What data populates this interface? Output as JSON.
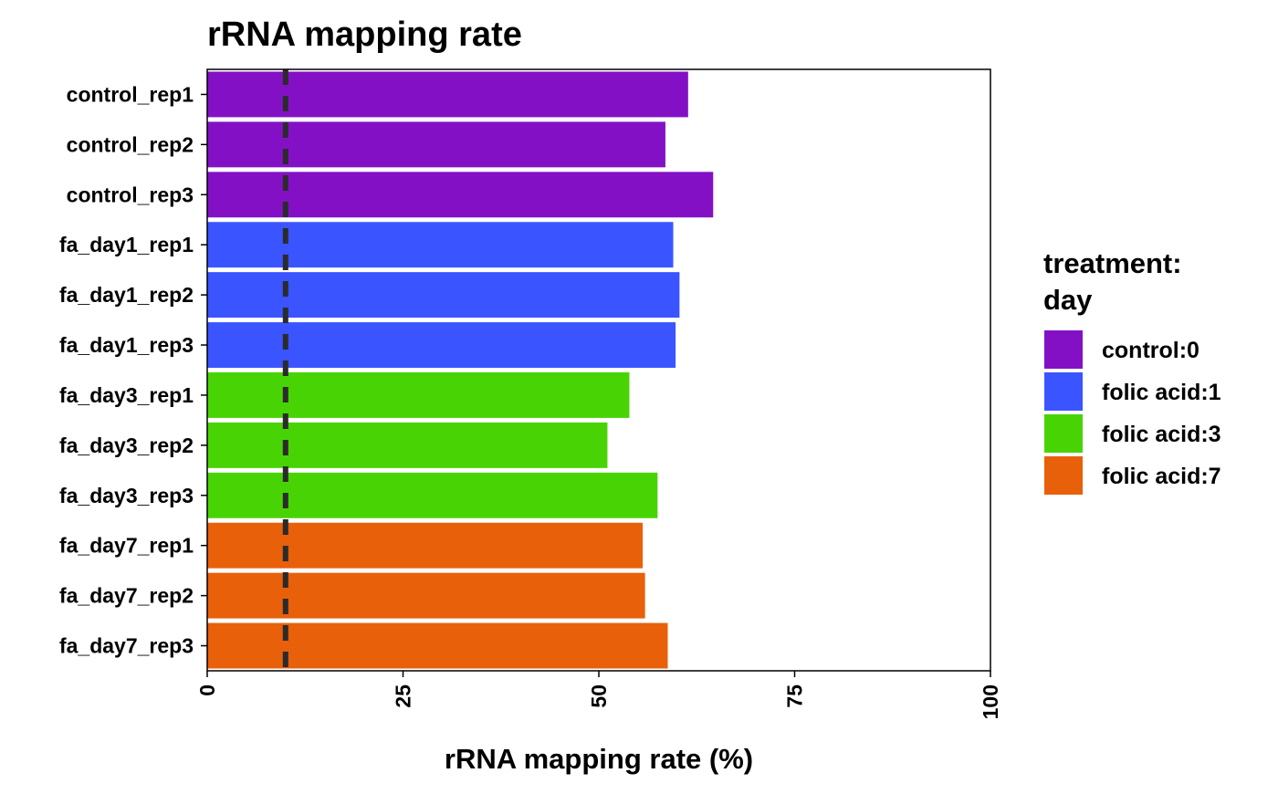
{
  "chart_data": {
    "type": "bar",
    "orientation": "horizontal",
    "title": "rRNA mapping rate",
    "xlabel": "rRNA mapping rate (%)",
    "ylabel": "",
    "xlim": [
      0,
      100
    ],
    "xticks": [
      "0",
      "25",
      "50",
      "75",
      "100"
    ],
    "xtick_values": [
      0,
      25,
      50,
      75,
      100
    ],
    "grid": false,
    "reference_line": {
      "value": 10,
      "style": "dashed",
      "color": "#2b2b2b"
    },
    "categories": [
      "control_rep1",
      "control_rep2",
      "control_rep3",
      "fa_day1_rep1",
      "fa_day1_rep2",
      "fa_day1_rep3",
      "fa_day3_rep1",
      "fa_day3_rep2",
      "fa_day3_rep3",
      "fa_day7_rep1",
      "fa_day7_rep2",
      "fa_day7_rep3"
    ],
    "values": [
      61.4,
      58.5,
      64.6,
      59.5,
      60.3,
      59.8,
      53.9,
      51.1,
      57.5,
      55.6,
      55.9,
      58.8
    ],
    "groups": [
      "control:0",
      "control:0",
      "control:0",
      "folic acid:1",
      "folic acid:1",
      "folic acid:1",
      "folic acid:3",
      "folic acid:3",
      "folic acid:3",
      "folic acid:7",
      "folic acid:7",
      "folic acid:7"
    ],
    "legend": {
      "title_line1": "treatment:",
      "title_line2": "day",
      "placement": "right",
      "entries": [
        {
          "label": "control:0",
          "color": "#8410C6"
        },
        {
          "label": "folic acid:1",
          "color": "#3A55FF"
        },
        {
          "label": "folic acid:3",
          "color": "#48D404"
        },
        {
          "label": "folic acid:7",
          "color": "#E8600A"
        }
      ]
    }
  }
}
